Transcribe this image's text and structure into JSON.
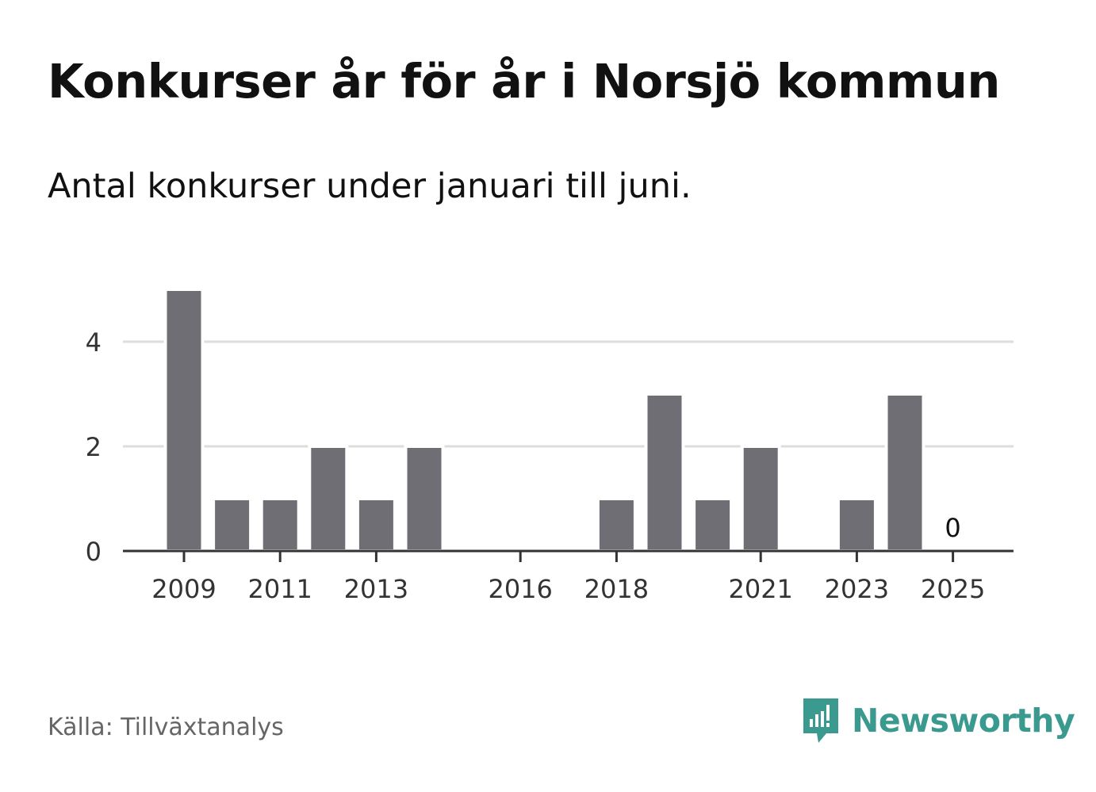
{
  "title": "Konkurser år för år i Norsjö kommun",
  "subtitle": "Antal konkurser under januari till juni.",
  "source": "Källa: Tillväxtanalys",
  "brand": {
    "name": "Newsworthy",
    "icon": "newsworthy-logo-icon",
    "color": "#3a9a8f"
  },
  "chart_data": {
    "type": "bar",
    "categories": [
      "2009",
      "2010",
      "2011",
      "2012",
      "2013",
      "2014",
      "2015",
      "2016",
      "2017",
      "2018",
      "2019",
      "2020",
      "2021",
      "2022",
      "2023",
      "2024",
      "2025"
    ],
    "values": [
      5,
      1,
      1,
      2,
      1,
      2,
      0,
      0,
      0,
      1,
      3,
      1,
      2,
      0,
      1,
      3,
      0
    ],
    "x_tick_labels": [
      "2009",
      "2011",
      "2013",
      "2016",
      "2018",
      "2021",
      "2023",
      "2025"
    ],
    "y_ticks": [
      0,
      2,
      4
    ],
    "ylim": [
      0,
      5
    ],
    "grid": true,
    "annotations": [
      {
        "category": "2025",
        "text": "0"
      }
    ],
    "bar_color": "#6f6e74",
    "grid_color": "#dddddd",
    "axis_color": "#333333"
  }
}
